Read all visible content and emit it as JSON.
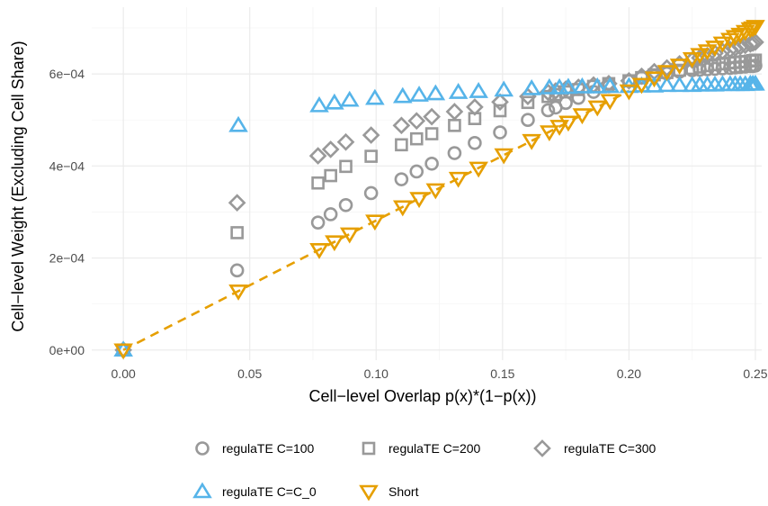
{
  "colors": {
    "regulaTE_C100": "#999999",
    "regulaTE_C200": "#999999",
    "regulaTE_C300": "#999999",
    "regulaTE_CC0": "#56B4E9",
    "Short": "#E69F00",
    "grid_major": "#EBEBEB",
    "grid_minor": "#F5F5F5",
    "text": "#4D4D4D",
    "title_text": "#000000"
  },
  "chart_data": {
    "type": "scatter",
    "title": "",
    "xlabel": "Cell−level Overlap p(x)*(1−p(x))",
    "ylabel": "Cell−level Weight (Excluding Cell Share)",
    "xlim": [
      -0.0125,
      0.2525
    ],
    "ylim": [
      -2.2e-05,
      0.000745
    ],
    "grid": true,
    "legend_position": "bottom",
    "x_ticks": [
      0.0,
      0.05,
      0.1,
      0.15,
      0.2,
      0.25
    ],
    "x_tick_labels": [
      "0.00",
      "0.05",
      "0.10",
      "0.15",
      "0.20",
      "0.25"
    ],
    "y_ticks": [
      0,
      0.0002,
      0.0004,
      0.0006
    ],
    "y_tick_labels": [
      "0e+00",
      "2e−04",
      "4e−04",
      "6e−04"
    ],
    "series": [
      {
        "name": "regulaTE C=100",
        "marker": "circle",
        "color": "#999999",
        "x": [
          0.0,
          0.045,
          0.077,
          0.082,
          0.088,
          0.098,
          0.11,
          0.116,
          0.122,
          0.131,
          0.139,
          0.149,
          0.16,
          0.168,
          0.171,
          0.175,
          0.18,
          0.186,
          0.192,
          0.2,
          0.205,
          0.21,
          0.215,
          0.22,
          0.225,
          0.228,
          0.231,
          0.234,
          0.237,
          0.24,
          0.242,
          0.244,
          0.246,
          0.248,
          0.249,
          0.25
        ],
        "y": [
          0.0,
          0.000173,
          0.000277,
          0.000295,
          0.000315,
          0.000341,
          0.000371,
          0.000388,
          0.000405,
          0.000428,
          0.00045,
          0.000473,
          0.0005,
          0.000521,
          0.000527,
          0.000537,
          0.000548,
          0.000561,
          0.000573,
          0.000585,
          0.000592,
          0.000596,
          0.000601,
          0.000605,
          0.000608,
          0.000609,
          0.00061,
          0.000611,
          0.000612,
          0.000613,
          0.000614,
          0.000615,
          0.000616,
          0.000617,
          0.000617,
          0.000618
        ]
      },
      {
        "name": "regulaTE C=200",
        "marker": "square",
        "color": "#999999",
        "x": [
          0.0,
          0.045,
          0.077,
          0.082,
          0.088,
          0.098,
          0.11,
          0.116,
          0.122,
          0.131,
          0.139,
          0.149,
          0.16,
          0.168,
          0.171,
          0.175,
          0.18,
          0.186,
          0.192,
          0.2,
          0.205,
          0.21,
          0.215,
          0.22,
          0.225,
          0.228,
          0.231,
          0.234,
          0.237,
          0.24,
          0.242,
          0.244,
          0.246,
          0.248,
          0.249,
          0.25
        ],
        "y": [
          0.0,
          0.000255,
          0.000363,
          0.000379,
          0.000399,
          0.000421,
          0.000446,
          0.000459,
          0.00047,
          0.000488,
          0.000503,
          0.00052,
          0.000538,
          0.000551,
          0.000555,
          0.000561,
          0.000566,
          0.000573,
          0.000579,
          0.000585,
          0.000592,
          0.000598,
          0.000603,
          0.000608,
          0.000612,
          0.000615,
          0.000618,
          0.00062,
          0.000622,
          0.000624,
          0.000625,
          0.000626,
          0.000627,
          0.000628,
          0.000629,
          0.00063
        ]
      },
      {
        "name": "regulaTE C=300",
        "marker": "diamond",
        "color": "#999999",
        "x": [
          0.0,
          0.045,
          0.077,
          0.082,
          0.088,
          0.098,
          0.11,
          0.116,
          0.122,
          0.131,
          0.139,
          0.149,
          0.16,
          0.168,
          0.171,
          0.175,
          0.18,
          0.186,
          0.192,
          0.2,
          0.205,
          0.21,
          0.215,
          0.22,
          0.225,
          0.228,
          0.231,
          0.234,
          0.237,
          0.24,
          0.242,
          0.244,
          0.246,
          0.248,
          0.249,
          0.25
        ],
        "y": [
          0.0,
          0.00032,
          0.000422,
          0.000436,
          0.000452,
          0.000467,
          0.000488,
          0.000498,
          0.000507,
          0.000518,
          0.000528,
          0.000539,
          0.000551,
          0.00056,
          0.000563,
          0.000567,
          0.000571,
          0.000576,
          0.000579,
          0.000585,
          0.000595,
          0.000605,
          0.000613,
          0.000622,
          0.00063,
          0.000635,
          0.00064,
          0.000645,
          0.000649,
          0.000653,
          0.000656,
          0.000659,
          0.000662,
          0.000665,
          0.000667,
          0.000669
        ]
      },
      {
        "name": "regulaTE C=C_0",
        "marker": "triangle-up",
        "color": "#56B4E9",
        "x": [
          0.0,
          0.0455,
          0.0775,
          0.0835,
          0.0895,
          0.0995,
          0.1105,
          0.117,
          0.1235,
          0.1325,
          0.1405,
          0.1505,
          0.1615,
          0.1685,
          0.1725,
          0.176,
          0.1815,
          0.1875,
          0.1925,
          0.2,
          0.205,
          0.21,
          0.215,
          0.22,
          0.225,
          0.228,
          0.231,
          0.234,
          0.237,
          0.24,
          0.242,
          0.244,
          0.246,
          0.248,
          0.249,
          0.25
        ],
        "y": [
          0.0,
          0.000488,
          0.000531,
          0.000537,
          0.000543,
          0.000547,
          0.000551,
          0.000554,
          0.000557,
          0.00056,
          0.000562,
          0.000565,
          0.000568,
          0.00057,
          0.00057,
          0.000571,
          0.000572,
          0.000572,
          0.000573,
          0.000573,
          0.000574,
          0.000574,
          0.000575,
          0.000575,
          0.000575,
          0.000576,
          0.000576,
          0.000576,
          0.000577,
          0.000577,
          0.000577,
          0.000577,
          0.000577,
          0.000578,
          0.000578,
          0.000578
        ]
      },
      {
        "name": "Short",
        "marker": "triangle-down",
        "color": "#E69F00",
        "x": [
          0.0,
          0.0455,
          0.0775,
          0.0835,
          0.0895,
          0.0995,
          0.1105,
          0.117,
          0.1235,
          0.1325,
          0.1405,
          0.1505,
          0.1615,
          0.1685,
          0.1725,
          0.176,
          0.1815,
          0.1875,
          0.1925,
          0.2,
          0.205,
          0.21,
          0.215,
          0.22,
          0.225,
          0.228,
          0.231,
          0.234,
          0.237,
          0.24,
          0.242,
          0.244,
          0.246,
          0.248,
          0.249,
          0.25
        ],
        "y": [
          0.0,
          0.000128,
          0.000218,
          0.000235,
          0.000252,
          0.00028,
          0.000311,
          0.000329,
          0.000348,
          0.000373,
          0.000395,
          0.000424,
          0.000455,
          0.000474,
          0.000486,
          0.000495,
          0.000511,
          0.000528,
          0.000542,
          0.000563,
          0.000577,
          0.000591,
          0.000605,
          0.000619,
          0.000633,
          0.000642,
          0.00065,
          0.000658,
          0.000667,
          0.000675,
          0.000681,
          0.000686,
          0.000692,
          0.000698,
          0.0007,
          0.000703
        ]
      }
    ],
    "reference_line": {
      "style": "dashed",
      "color": "#E69F00",
      "x": [
        0.0,
        0.2
      ],
      "y": [
        0.0,
        0.000563
      ]
    }
  }
}
